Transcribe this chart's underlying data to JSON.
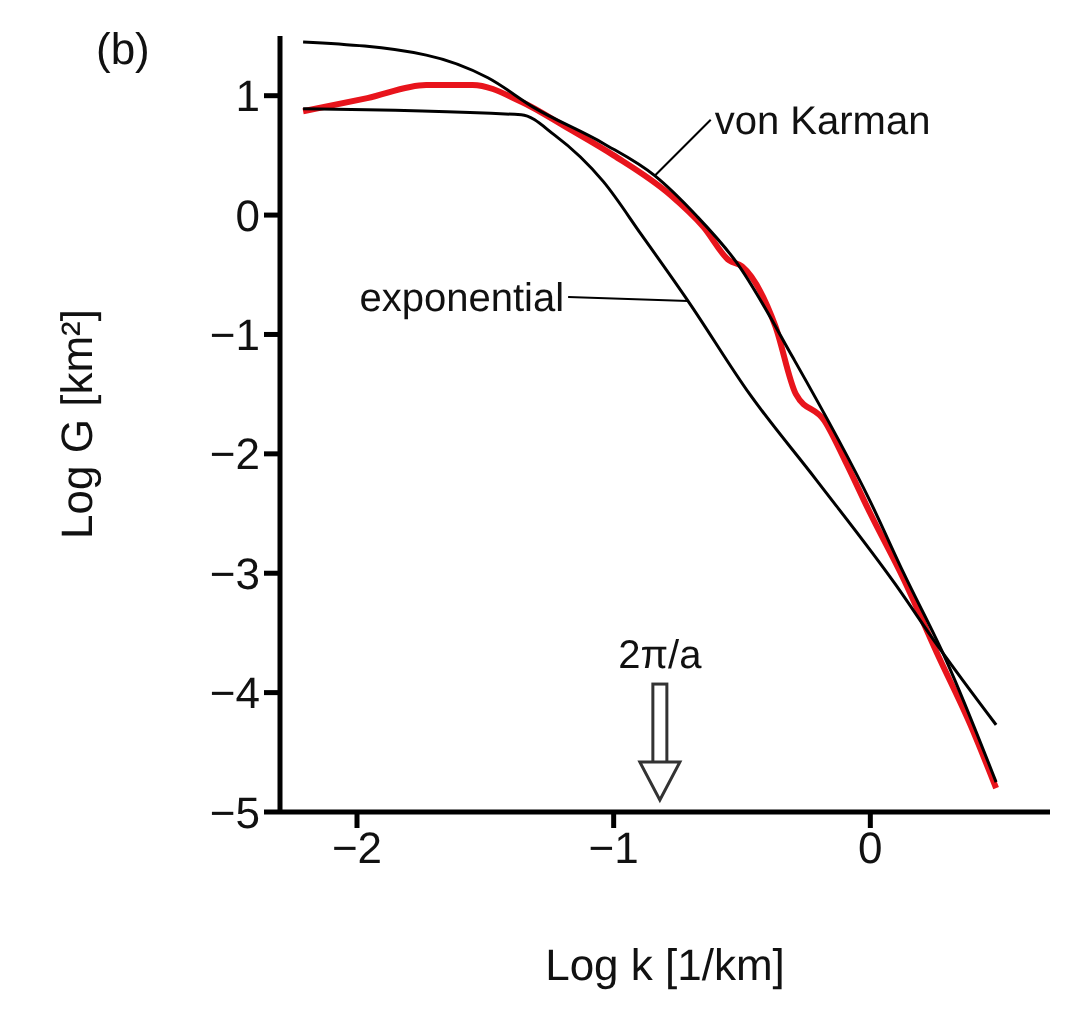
{
  "chart_data": {
    "type": "line",
    "title": "(b)",
    "xlabel": "Log k [1/km]",
    "ylabel": "Log G [km²]",
    "xlim": [
      -2.3,
      0.7
    ],
    "ylim": [
      -5,
      1.5
    ],
    "xticks": [
      -2,
      -1,
      0
    ],
    "yticks": [
      -5,
      -4,
      -3,
      -2,
      -1,
      0,
      1
    ],
    "grid": false,
    "legend": "right",
    "marker": "none",
    "line_style": "solid",
    "series": [
      {
        "color": "#e8141c",
        "x": [
          -2.21,
          -1.96,
          -1.73,
          -1.55,
          -1.36,
          -1.18,
          -1.0,
          -0.78,
          -0.65,
          -0.55,
          -0.5,
          -0.37,
          -0.29,
          -0.18,
          -0.1,
          0,
          0.13,
          0.26,
          0.39,
          0.49
        ],
        "values": [
          0.87,
          0.98,
          1.09,
          1.09,
          0.95,
          0.73,
          0.5,
          0.17,
          -0.1,
          -0.38,
          -0.43,
          -0.93,
          -1.5,
          -1.72,
          -2.05,
          -2.5,
          -3.05,
          -3.67,
          -4.27,
          -4.8
        ]
      },
      {
        "name": "von Karman",
        "color": "#000000",
        "x": [
          -2.21,
          -1.73,
          -1.49,
          -1.31,
          -1.04,
          -0.84,
          -0.68,
          -0.52,
          -0.3,
          0,
          0.13,
          0.3,
          0.49
        ],
        "values": [
          1.45,
          1.34,
          1.15,
          0.9,
          0.6,
          0.33,
          0,
          -0.4,
          -1.2,
          -2.4,
          -3.0,
          -3.75,
          -4.75
        ]
      },
      {
        "name": "exponential",
        "color": "#000000",
        "x": [
          -2.21,
          -1.36,
          -1.23,
          -1.04,
          -0.89,
          -0.71,
          -0.47,
          -0.21,
          0.1,
          0.26,
          0.49
        ],
        "values": [
          0.89,
          0.84,
          0.67,
          0.28,
          -0.17,
          -0.72,
          -1.5,
          -2.22,
          -3.1,
          -3.6,
          -4.27
        ]
      }
    ],
    "annotations": [
      "2π/a"
    ]
  }
}
